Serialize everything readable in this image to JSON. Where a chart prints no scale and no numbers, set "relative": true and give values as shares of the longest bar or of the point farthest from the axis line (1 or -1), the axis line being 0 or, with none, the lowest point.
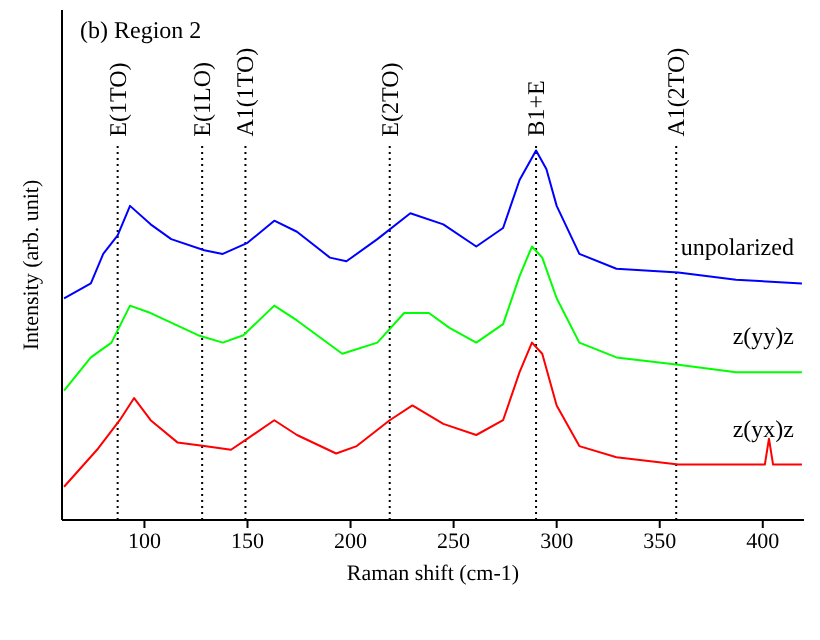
{
  "chart_data": {
    "type": "line",
    "relative": true,
    "xlabel": "Raman shift (cm-1)",
    "ylabel": "Intensity (arb. unit)",
    "annotations": [
      "(b) Region 2"
    ],
    "xlim": [
      60,
      420
    ],
    "xticks": [
      100,
      150,
      200,
      250,
      300,
      350,
      400
    ],
    "grid": false,
    "legend": false,
    "marker": "none",
    "line_style": "solid",
    "ref_lines": [
      {
        "axis": "x",
        "value": 87,
        "label": "E(1TO)",
        "color": "#000000",
        "line_style": "dotted"
      },
      {
        "axis": "x",
        "value": 128,
        "label": "E(1LO)",
        "color": "#000000",
        "line_style": "dotted"
      },
      {
        "axis": "x",
        "value": 149,
        "label": "A1(1TO)",
        "color": "#000000",
        "line_style": "dotted"
      },
      {
        "axis": "x",
        "value": 219,
        "label": "E(2TO)",
        "color": "#000000",
        "line_style": "dotted"
      },
      {
        "axis": "x",
        "value": 290,
        "label": "B1+E",
        "color": "#000000",
        "line_style": "dotted"
      },
      {
        "axis": "x",
        "value": 358,
        "label": "A1(2TO)",
        "color": "#000000",
        "line_style": "dotted"
      }
    ],
    "series": [
      {
        "name": "unpolarized",
        "color": "#0000ff",
        "x": [
          61,
          74,
          80,
          87,
          93,
          103,
          113,
          129,
          138,
          150,
          163,
          174,
          190,
          198,
          213,
          229,
          245,
          261,
          274,
          282,
          290,
          295,
          300,
          311,
          329,
          359,
          387,
          419
        ],
        "values": [
          0.6,
          0.64,
          0.72,
          0.77,
          0.85,
          0.8,
          0.76,
          0.73,
          0.72,
          0.75,
          0.81,
          0.78,
          0.71,
          0.7,
          0.76,
          0.83,
          0.8,
          0.74,
          0.79,
          0.92,
          1.0,
          0.95,
          0.85,
          0.72,
          0.68,
          0.67,
          0.65,
          0.64
        ]
      },
      {
        "name": "z(yy)z",
        "color": "#00ff00",
        "x": [
          61,
          74,
          84,
          93,
          103,
          126,
          138,
          148,
          163,
          174,
          196,
          213,
          226,
          238,
          248,
          261,
          274,
          282,
          288,
          293,
          300,
          311,
          329,
          359,
          387,
          419
        ],
        "values": [
          0.35,
          0.44,
          0.48,
          0.58,
          0.56,
          0.5,
          0.48,
          0.5,
          0.58,
          0.54,
          0.45,
          0.48,
          0.56,
          0.56,
          0.52,
          0.48,
          0.53,
          0.66,
          0.74,
          0.71,
          0.6,
          0.48,
          0.44,
          0.42,
          0.4,
          0.4
        ]
      },
      {
        "name": "z(yx)z",
        "color": "#ff0000",
        "x": [
          61,
          77,
          88,
          95,
          103,
          116,
          129,
          142,
          150,
          163,
          174,
          193,
          203,
          219,
          230,
          245,
          261,
          274,
          282,
          288,
          293,
          300,
          311,
          329,
          359,
          387,
          401,
          403,
          405,
          419
        ],
        "values": [
          0.09,
          0.19,
          0.27,
          0.33,
          0.27,
          0.21,
          0.2,
          0.19,
          0.22,
          0.27,
          0.23,
          0.18,
          0.2,
          0.27,
          0.31,
          0.26,
          0.23,
          0.27,
          0.4,
          0.48,
          0.45,
          0.31,
          0.2,
          0.17,
          0.15,
          0.15,
          0.15,
          0.22,
          0.15,
          0.15
        ]
      }
    ]
  }
}
